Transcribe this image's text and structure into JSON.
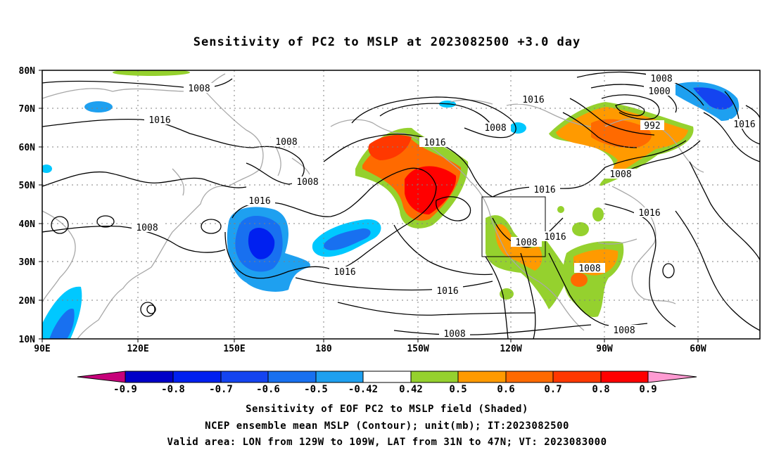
{
  "title": "Sensitivity of PC2 to MSLP at 2023082500 +3.0 day",
  "lat_labels": [
    "80N",
    "70N",
    "60N",
    "50N",
    "40N",
    "30N",
    "20N",
    "10N"
  ],
  "lon_labels": [
    "90E",
    "120E",
    "150E",
    "180",
    "150W",
    "120W",
    "90W",
    "60W"
  ],
  "contour_labels": [
    "1008",
    "1016",
    "1016",
    "1008",
    "1008",
    "1016",
    "1008",
    "1016",
    "1008",
    "1016",
    "1016",
    "1008",
    "1016",
    "1008",
    "1016",
    "1008",
    "1008",
    "1000",
    "992",
    "1016",
    "1008",
    "1008",
    "1016",
    "1008"
  ],
  "colorbar": {
    "ticks": [
      "-0.9",
      "-0.8",
      "-0.7",
      "-0.6",
      "-0.5",
      "-0.42",
      "0.42",
      "0.5",
      "0.6",
      "0.7",
      "0.8",
      "0.9"
    ],
    "colors": [
      "#c6007a",
      "#0000c8",
      "#0020f0",
      "#1444f0",
      "#1870f0",
      "#1ea0f0",
      "#00c8ff",
      "#ffffff",
      "#95d12e",
      "#ff9a00",
      "#ff6a00",
      "#ff3800",
      "#ff0000",
      "#ff9bd2"
    ]
  },
  "captions": [
    "Sensitivity of EOF PC2 to MSLP field (Shaded)",
    "NCEP ensemble mean MSLP (Contour); unit(mb); IT:2023082500",
    "Valid area: LON from 129W to 109W, LAT from 31N to 47N; VT: 2023083000"
  ]
}
